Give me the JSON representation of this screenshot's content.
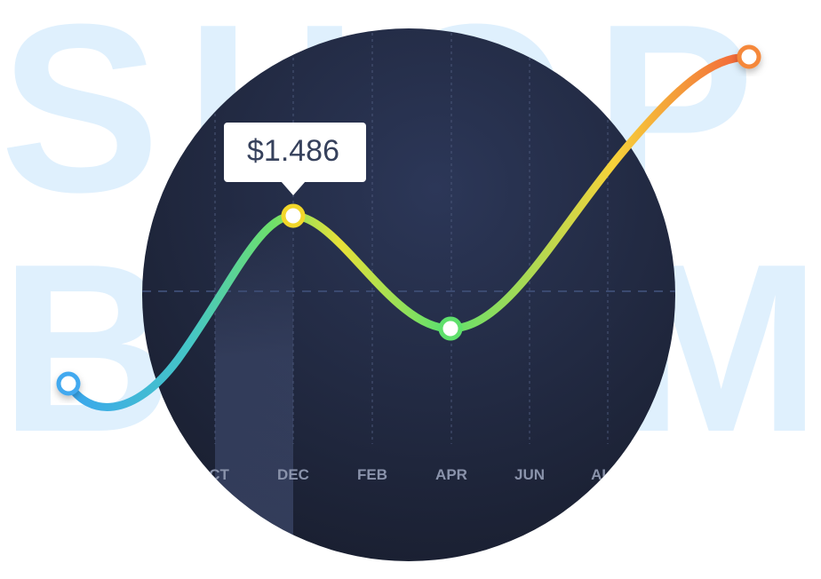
{
  "background_words": [
    "SHOP",
    "BOOM"
  ],
  "months": [
    "OCT",
    "DEC",
    "FEB",
    "APR",
    "JUN",
    "AUG"
  ],
  "tooltip": "$1.486"
}
